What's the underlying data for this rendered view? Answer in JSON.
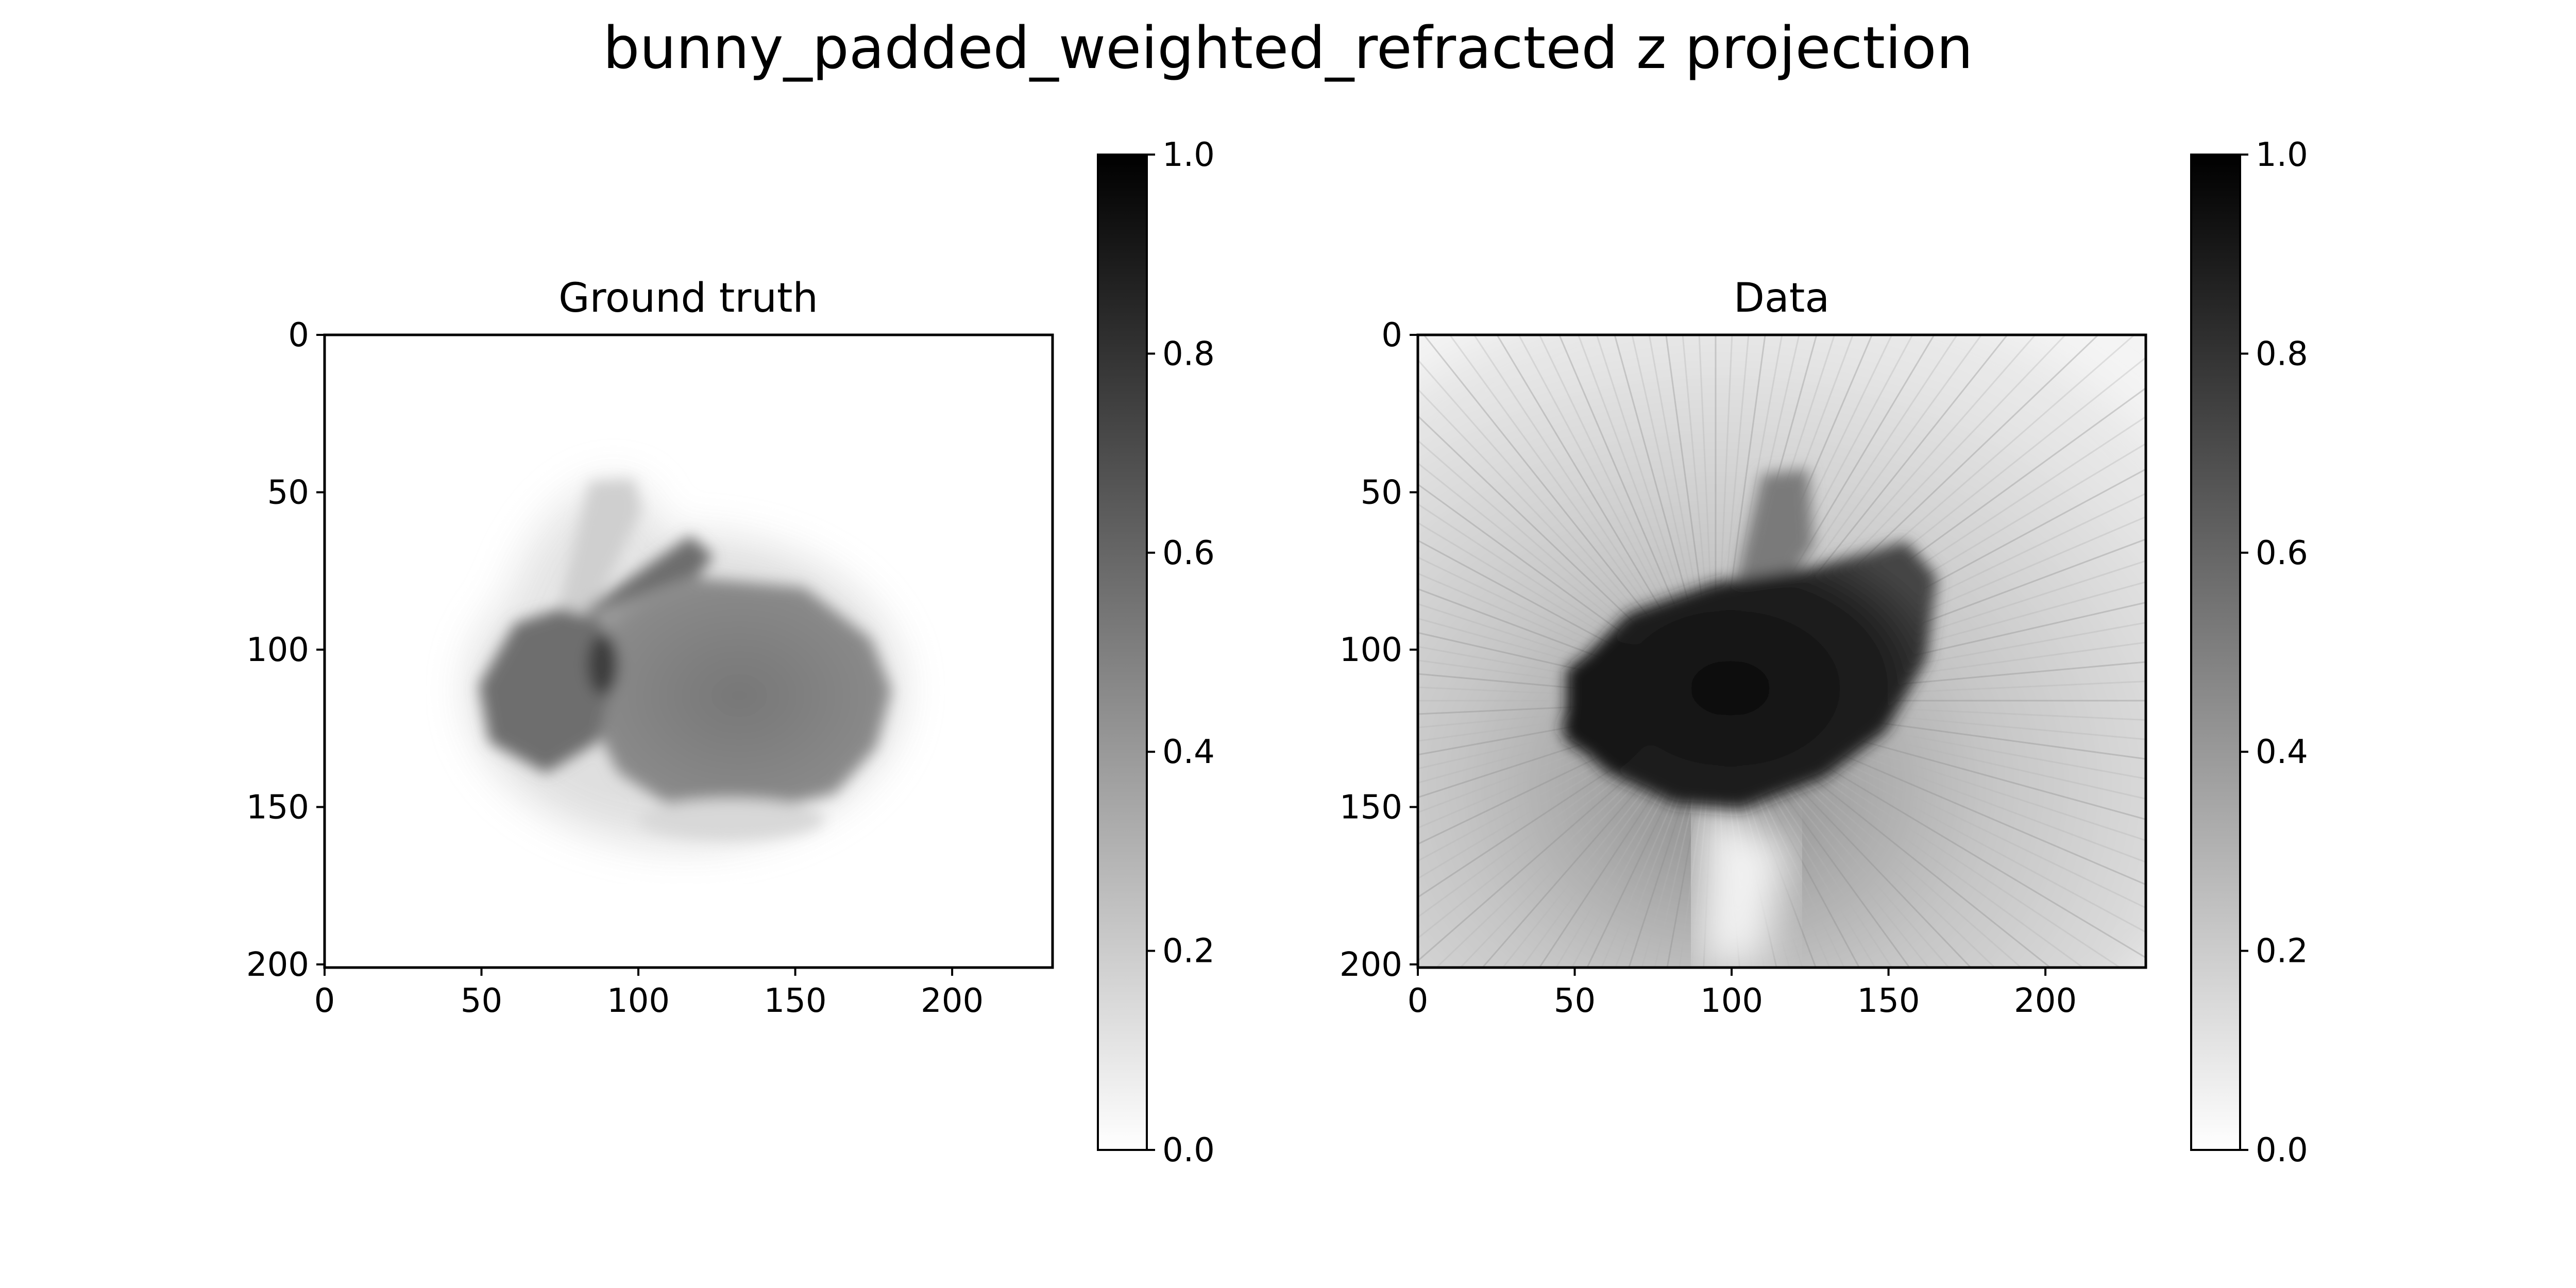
{
  "title": "bunny_padded_weighted_refracted z projection",
  "chart_data": [
    {
      "type": "heatmap",
      "title": "Ground truth",
      "colormap": "grayscale (0 = white, 1 = black)",
      "image_shape": [
        201,
        232
      ],
      "xlim": [
        0,
        232
      ],
      "ylim": [
        201,
        0
      ],
      "x_ticks": [
        0,
        50,
        100,
        150,
        200
      ],
      "y_ticks": [
        0,
        50,
        100,
        150,
        200
      ],
      "x_tick_labels": [
        "0",
        "50",
        "100",
        "150",
        "200"
      ],
      "y_tick_labels": [
        "0",
        "50",
        "100",
        "150",
        "200"
      ],
      "colorbar": {
        "range": [
          0.0,
          1.0
        ],
        "ticks": [
          "0.0",
          "0.2",
          "0.4",
          "0.6",
          "0.8",
          "1.0"
        ]
      },
      "content": "bunny silhouette, values ~0.5-0.7 in body, ~0.0 background"
    },
    {
      "type": "heatmap",
      "title": "Data",
      "colormap": "grayscale (0 = white, 1 = black)",
      "image_shape": [
        201,
        232
      ],
      "xlim": [
        0,
        232
      ],
      "ylim": [
        201,
        0
      ],
      "x_ticks": [
        0,
        50,
        100,
        150,
        200
      ],
      "y_ticks": [
        0,
        50,
        100,
        150,
        200
      ],
      "x_tick_labels": [
        "0",
        "50",
        "100",
        "150",
        "200"
      ],
      "y_tick_labels": [
        "0",
        "50",
        "100",
        "150",
        "200"
      ],
      "colorbar": {
        "range": [
          0.0,
          1.0
        ],
        "ticks": [
          "0.0",
          "0.2",
          "0.4",
          "0.6",
          "0.8",
          "1.0"
        ]
      },
      "content": "refracted reconstruction, dark bunny body ~0.9-1.0 with streak artifacts ~0.1-0.3"
    }
  ]
}
